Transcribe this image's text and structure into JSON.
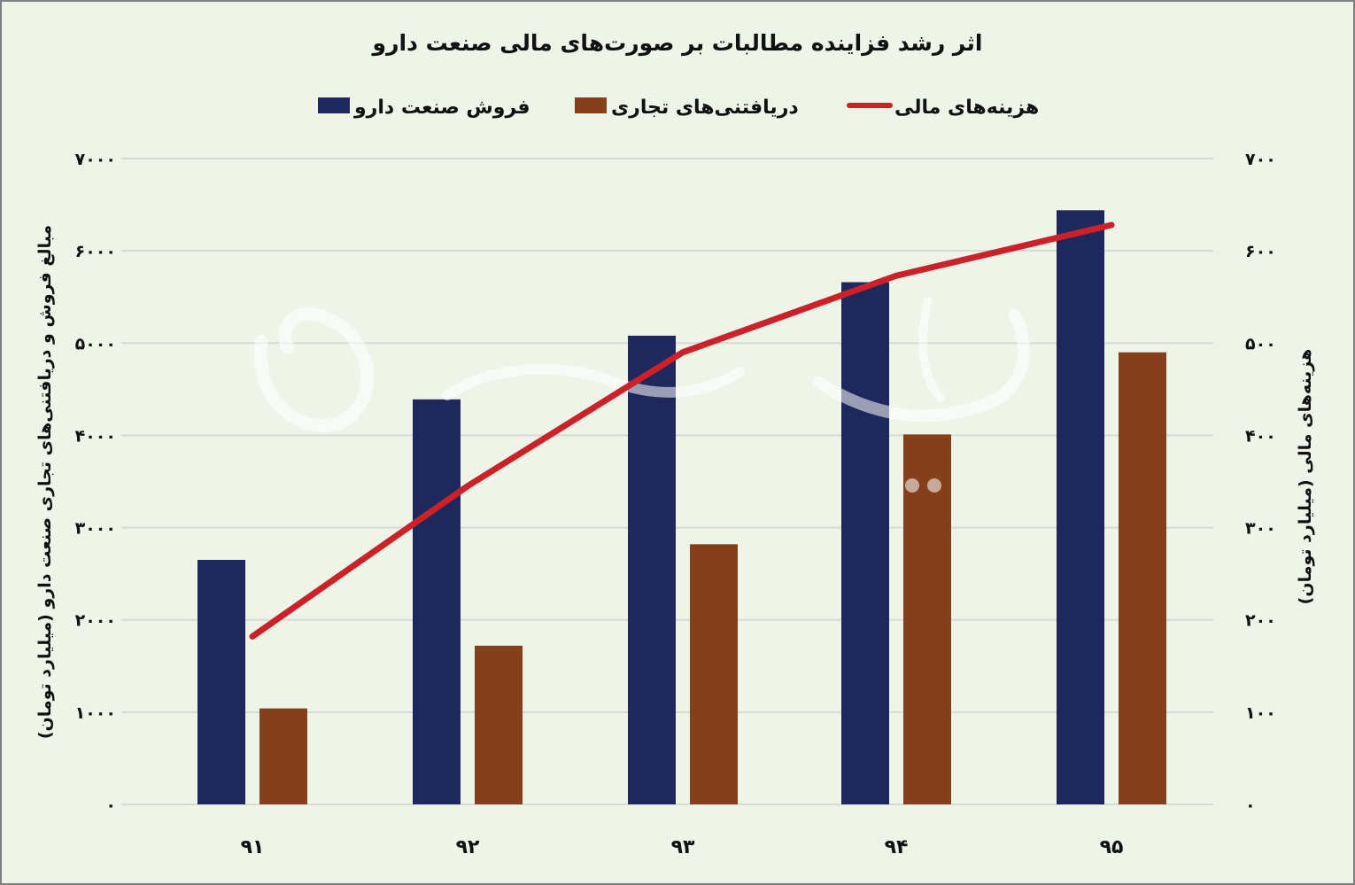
{
  "title": "اثر رشد فزاینده مطالبات بر صورت‌های مالی صنعت دارو",
  "watermark": "دنیای بورس",
  "colors": {
    "sales": "#1f285c",
    "receivables": "#84401d",
    "finance": "#cc2128",
    "grid": "#d6dbd4"
  },
  "legend": [
    {
      "label": "فروش صنعت دارو",
      "color": "#1f285c",
      "kind": "bar"
    },
    {
      "label": "دریافتنی‌های تجاری",
      "color": "#84401d",
      "kind": "bar"
    },
    {
      "label": "هزینه‌های مالی",
      "color": "#cc2128",
      "kind": "line"
    }
  ],
  "y_left_title": "مبالغ فروش و دریافتنی‌های تجاری صنعت دارو (میلیارد تومان)",
  "y_right_title": "هزینه‌های مالی (میلیارد تومان)",
  "chart_data": {
    "type": "bar",
    "title": "اثر رشد فزاینده مطالبات بر صورت‌های مالی صنعت دارو",
    "categories": [
      "۹۱",
      "۹۲",
      "۹۳",
      "۹۴",
      "۹۵"
    ],
    "series": [
      {
        "name": "فروش صنعت دارو",
        "type": "bar",
        "axis": "left",
        "values": [
          2650,
          4390,
          5080,
          5660,
          6440
        ]
      },
      {
        "name": "دریافتنی‌های تجاری",
        "type": "bar",
        "axis": "left",
        "values": [
          1040,
          1720,
          2820,
          4010,
          4900
        ]
      },
      {
        "name": "هزینه‌های مالی",
        "type": "line",
        "axis": "right",
        "values": [
          182,
          345,
          490,
          573,
          628
        ]
      }
    ],
    "ylabel": "مبالغ فروش و دریافتنی‌های تجاری صنعت دارو (میلیارد تومان)",
    "y2label": "هزینه‌های مالی (میلیارد تومان)",
    "ylim": [
      0,
      7000
    ],
    "y2lim": [
      0,
      700
    ],
    "yticks": [
      "۰",
      "۱۰۰۰",
      "۲۰۰۰",
      "۳۰۰۰",
      "۴۰۰۰",
      "۵۰۰۰",
      "۶۰۰۰",
      "۷۰۰۰"
    ],
    "y2ticks": [
      "۰",
      "۱۰۰",
      "۲۰۰",
      "۳۰۰",
      "۴۰۰",
      "۵۰۰",
      "۶۰۰",
      "۷۰۰"
    ],
    "grid": true,
    "legend_position": "top"
  }
}
